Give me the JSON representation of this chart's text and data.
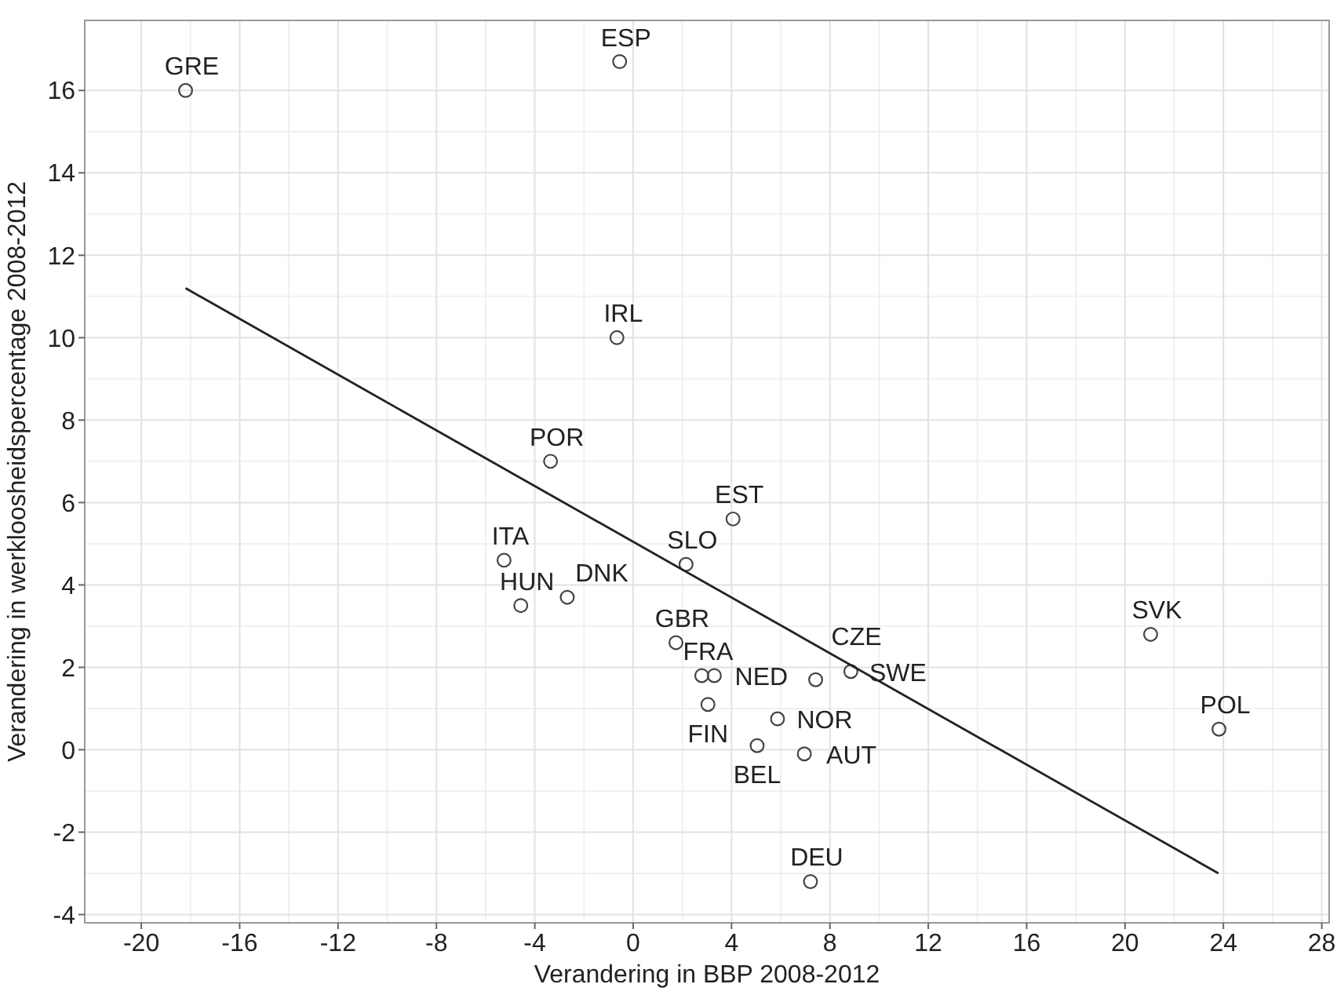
{
  "chart_data": {
    "type": "scatter",
    "xlabel": "Verandering in BBP 2008-2012",
    "ylabel": "Verandering in werkloosheidspercentage 2008-2012",
    "xlim": [
      -22.3,
      28.3
    ],
    "ylim": [
      -4.2,
      17.7
    ],
    "xticks": [
      -20,
      -16,
      -12,
      -8,
      -4,
      0,
      4,
      8,
      12,
      16,
      20,
      24,
      28
    ],
    "yticks": [
      -4,
      -2,
      0,
      2,
      4,
      6,
      8,
      10,
      12,
      14,
      16
    ],
    "grid": true,
    "marker": "circle",
    "series": [
      {
        "color": "#444444",
        "x": [
          -18.2,
          -0.55,
          -0.66,
          -3.36,
          -5.25,
          -4.57,
          -2.68,
          2.15,
          4.06,
          1.74,
          2.79,
          3.3,
          3.04,
          5.87,
          5.04,
          6.96,
          7.42,
          8.85,
          21.04,
          23.82,
          7.21
        ],
        "values": [
          16.0,
          16.7,
          10.0,
          7.0,
          4.6,
          3.5,
          3.7,
          4.5,
          5.6,
          2.6,
          1.8,
          1.8,
          1.1,
          0.75,
          0.1,
          -0.1,
          1.7,
          1.9,
          2.8,
          0.5,
          -3.2
        ]
      },
      {
        "type": "line",
        "color": "#222222",
        "marker": "none",
        "x": [
          -18.2,
          23.8
        ],
        "values": [
          11.2,
          -3.0
        ]
      }
    ],
    "annotations": [
      {
        "text": "GRE",
        "x": -18.2,
        "y": 16.0
      },
      {
        "text": "ESP",
        "x": -0.55,
        "y": 16.7
      },
      {
        "text": "IRL",
        "x": -0.66,
        "y": 10.0
      },
      {
        "text": "POR",
        "x": -3.36,
        "y": 7.0
      },
      {
        "text": "ITA",
        "x": -5.25,
        "y": 4.6
      },
      {
        "text": "HUN",
        "x": -4.57,
        "y": 3.5
      },
      {
        "text": "DNK",
        "x": -2.68,
        "y": 3.7
      },
      {
        "text": "SLO",
        "x": 2.15,
        "y": 4.5
      },
      {
        "text": "EST",
        "x": 4.06,
        "y": 5.6
      },
      {
        "text": "GBR",
        "x": 1.74,
        "y": 2.6
      },
      {
        "text": "FRA",
        "x": 2.79,
        "y": 1.8
      },
      {
        "text": "NED",
        "x": 3.3,
        "y": 1.8
      },
      {
        "text": "FIN",
        "x": 3.04,
        "y": 1.1
      },
      {
        "text": "NOR",
        "x": 5.87,
        "y": 0.75
      },
      {
        "text": "BEL",
        "x": 5.04,
        "y": 0.1
      },
      {
        "text": "AUT",
        "x": 6.96,
        "y": -0.1
      },
      {
        "text": "CZE",
        "x": 7.42,
        "y": 1.7
      },
      {
        "text": "SWE",
        "x": 8.85,
        "y": 1.9
      },
      {
        "text": "SVK",
        "x": 21.04,
        "y": 2.8
      },
      {
        "text": "POL",
        "x": 23.82,
        "y": 0.5
      },
      {
        "text": "DEU",
        "x": 7.21,
        "y": -3.2
      }
    ]
  }
}
